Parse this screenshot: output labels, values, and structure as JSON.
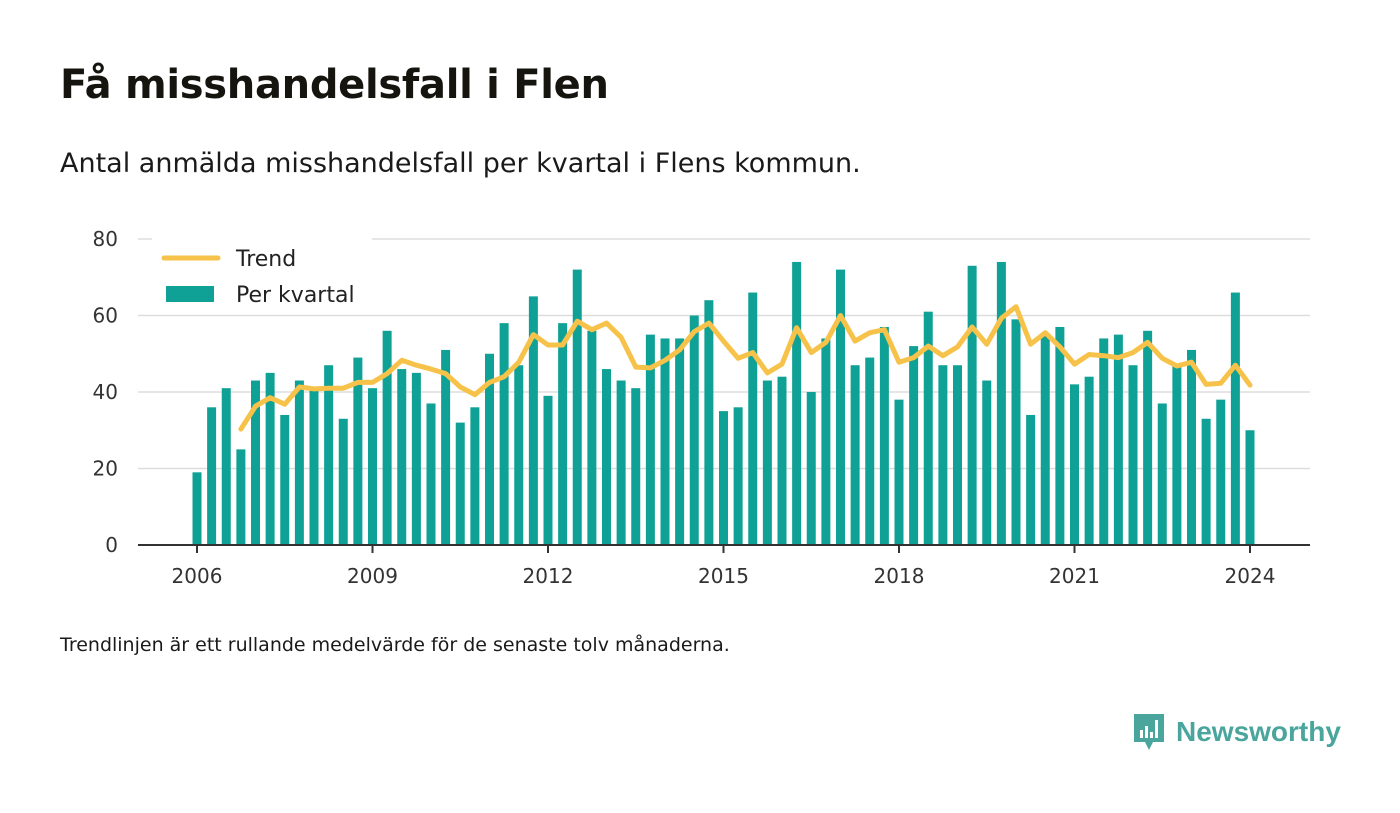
{
  "title": "Få misshandelsfall i Flen",
  "subtitle": "Antal anmälda misshandelsfall per kvartal i Flens kommun.",
  "footnote": "Trendlinjen är ett rullande medelvärde för de senaste tolv månaderna.",
  "brand": {
    "name": "Newsworthy",
    "logo_icon": "bar-chart-speech-bubble-icon"
  },
  "colors": {
    "bars": "#0fa195",
    "trend": "#f7c24a",
    "axis": "#333333",
    "grid": "#dddddd",
    "brand": "#4aa59c"
  },
  "chart_data": {
    "type": "bar",
    "title": "Få misshandelsfall i Flen",
    "xlabel": "",
    "ylabel": "",
    "ylim": [
      0,
      80
    ],
    "yticks": [
      "0",
      "20",
      "40",
      "60",
      "80"
    ],
    "xticks": [
      "2006",
      "2009",
      "2012",
      "2015",
      "2018",
      "2021",
      "2024"
    ],
    "grid": true,
    "legend_position": "top-left",
    "categories": [
      "2006 K1",
      "2006 K2",
      "2006 K3",
      "2006 K4",
      "2007 K1",
      "2007 K2",
      "2007 K3",
      "2007 K4",
      "2008 K1",
      "2008 K2",
      "2008 K3",
      "2008 K4",
      "2009 K1",
      "2009 K2",
      "2009 K3",
      "2009 K4",
      "2010 K1",
      "2010 K2",
      "2010 K3",
      "2010 K4",
      "2011 K1",
      "2011 K2",
      "2011 K3",
      "2011 K4",
      "2012 K1",
      "2012 K2",
      "2012 K3",
      "2012 K4",
      "2013 K1",
      "2013 K2",
      "2013 K3",
      "2013 K4",
      "2014 K1",
      "2014 K2",
      "2014 K3",
      "2014 K4",
      "2015 K1",
      "2015 K2",
      "2015 K3",
      "2015 K4",
      "2016 K1",
      "2016 K2",
      "2016 K3",
      "2016 K4",
      "2017 K1",
      "2017 K2",
      "2017 K3",
      "2017 K4",
      "2018 K1",
      "2018 K2",
      "2018 K3",
      "2018 K4",
      "2019 K1",
      "2019 K2",
      "2019 K3",
      "2019 K4",
      "2020 K1",
      "2020 K2",
      "2020 K3",
      "2020 K4",
      "2021 K1",
      "2021 K2",
      "2021 K3",
      "2021 K4",
      "2022 K1",
      "2022 K2",
      "2022 K3",
      "2022 K4",
      "2023 K1",
      "2023 K2",
      "2023 K3",
      "2023 K4",
      "2024 K1"
    ],
    "series": [
      {
        "name": "Per kvartal",
        "kind": "bar",
        "values": [
          19,
          36,
          41,
          25,
          43,
          45,
          34,
          43,
          41,
          47,
          33,
          49,
          41,
          56,
          46,
          45,
          37,
          51,
          32,
          36,
          50,
          58,
          47,
          65,
          39,
          58,
          72,
          56,
          46,
          43,
          41,
          55,
          54,
          54,
          60,
          64,
          35,
          36,
          66,
          43,
          44,
          74,
          40,
          54,
          72,
          47,
          49,
          57,
          38,
          52,
          61,
          47,
          47,
          73,
          43,
          74,
          59,
          34,
          55,
          57,
          42,
          44,
          54,
          55,
          47,
          56,
          37,
          47,
          51,
          33,
          38,
          66,
          30
        ]
      },
      {
        "name": "Trend",
        "kind": "line",
        "values": [
          null,
          null,
          null,
          30.3,
          36.3,
          38.5,
          36.8,
          41.3,
          40.8,
          41.0,
          41.0,
          42.5,
          42.5,
          44.8,
          48.3,
          47.0,
          46.0,
          44.8,
          41.3,
          39.3,
          42.5,
          44.0,
          47.8,
          55.0,
          52.3,
          52.3,
          58.5,
          56.3,
          58.0,
          54.3,
          46.5,
          46.3,
          48.3,
          51.0,
          55.8,
          58.0,
          53.3,
          48.8,
          50.3,
          45.0,
          47.3,
          56.8,
          50.3,
          53.0,
          60.0,
          53.3,
          55.5,
          56.3,
          47.8,
          49.0,
          52.0,
          49.5,
          51.8,
          57.0,
          52.5,
          59.3,
          62.3,
          52.5,
          55.5,
          51.8,
          47.3,
          49.8,
          49.5,
          49.0,
          50.3,
          53.0,
          48.8,
          46.8,
          47.8,
          42.0,
          42.3,
          47.0,
          41.8
        ]
      }
    ]
  }
}
